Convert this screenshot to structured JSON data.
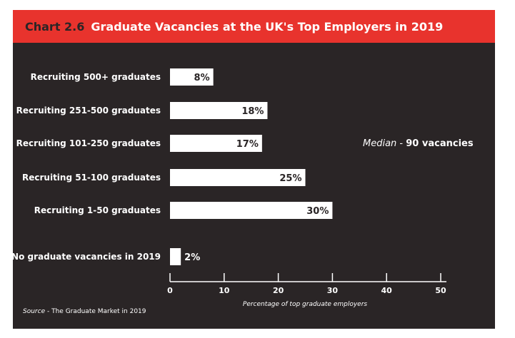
{
  "header": {
    "chart_number": "Chart 2.6",
    "title": "Graduate Vacancies at the UK's Top Employers in 2019"
  },
  "median": {
    "label": "Median",
    "separator": " - ",
    "value": "90 vacancies"
  },
  "source": {
    "label": "Source",
    "separator": " - ",
    "text": "The Graduate Market in 2019"
  },
  "colors": {
    "background": "#2a2526",
    "header": "#e8332d",
    "bar": "#ffffff",
    "text": "#ffffff"
  },
  "chart_data": {
    "type": "bar",
    "orientation": "horizontal",
    "categories": [
      "Recruiting 500+ graduates",
      "Recruiting 251-500 graduates",
      "Recruiting 101-250 graduates",
      "Recruiting 51-100 graduates",
      "Recruiting 1-50 graduates",
      "No graduate vacancies in 2019"
    ],
    "values": [
      8,
      18,
      17,
      25,
      30,
      2
    ],
    "value_labels": [
      "8%",
      "18%",
      "17%",
      "25%",
      "30%",
      "2%"
    ],
    "xlabel": "Percentage of top graduate employers",
    "xlim": [
      0,
      50
    ],
    "xticks": [
      0,
      10,
      20,
      30,
      40,
      50
    ],
    "grid": false,
    "legend": "none"
  }
}
